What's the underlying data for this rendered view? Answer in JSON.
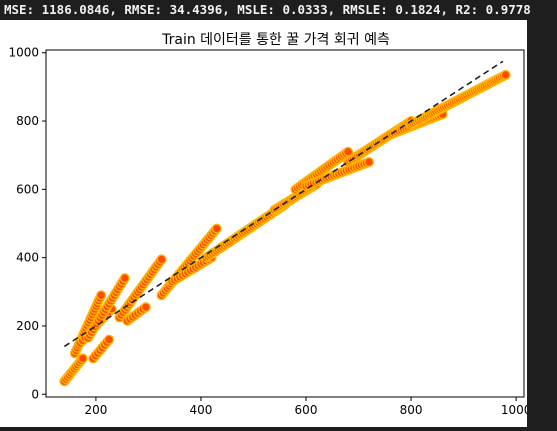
{
  "metrics_text": "MSE: 1186.0846, RMSE: 34.4396, MSLE: 0.0333, RMSLE: 0.1824, R2: 0.9778",
  "colors": {
    "marker_face": "#ff4a00",
    "marker_edge": "#ffb400",
    "diagonal": "#222222",
    "axes": "#000000",
    "figure_bg": "#ffffff",
    "page_bg": "#1e1e1e"
  },
  "chart_data": {
    "type": "scatter",
    "title": "Train 데이터를 통한 꿀 가격 회귀 예측",
    "xlabel": "",
    "ylabel": "",
    "xlim": [
      105,
      1015
    ],
    "ylim": [
      -8,
      1008
    ],
    "xticks": [
      200,
      400,
      600,
      800,
      1000
    ],
    "yticks": [
      0,
      200,
      400,
      600,
      800,
      1000
    ],
    "grid": false,
    "legend": "none",
    "diagonal_line": {
      "style": "dashed",
      "from": [
        140,
        140
      ],
      "to": [
        975,
        975
      ]
    },
    "segments": [
      {
        "from": [
          140,
          38
        ],
        "to": [
          175,
          105
        ],
        "n": 12
      },
      {
        "from": [
          160,
          120
        ],
        "to": [
          210,
          290
        ],
        "n": 22
      },
      {
        "from": [
          170,
          150
        ],
        "to": [
          230,
          250
        ],
        "n": 14
      },
      {
        "from": [
          185,
          165
        ],
        "to": [
          255,
          340
        ],
        "n": 22
      },
      {
        "from": [
          195,
          105
        ],
        "to": [
          225,
          160
        ],
        "n": 8
      },
      {
        "from": [
          245,
          225
        ],
        "to": [
          325,
          395
        ],
        "n": 24
      },
      {
        "from": [
          260,
          215
        ],
        "to": [
          295,
          255
        ],
        "n": 8
      },
      {
        "from": [
          325,
          290
        ],
        "to": [
          430,
          485
        ],
        "n": 30
      },
      {
        "from": [
          345,
          330
        ],
        "to": [
          420,
          400
        ],
        "n": 16
      },
      {
        "from": [
          410,
          400
        ],
        "to": [
          560,
          555
        ],
        "n": 40
      },
      {
        "from": [
          540,
          540
        ],
        "to": [
          620,
          615
        ],
        "n": 24
      },
      {
        "from": [
          580,
          600
        ],
        "to": [
          680,
          710
        ],
        "n": 26
      },
      {
        "from": [
          600,
          610
        ],
        "to": [
          720,
          680
        ],
        "n": 26
      },
      {
        "from": [
          680,
          680
        ],
        "to": [
          800,
          800
        ],
        "n": 34
      },
      {
        "from": [
          760,
          760
        ],
        "to": [
          860,
          820
        ],
        "n": 24
      },
      {
        "from": [
          800,
          790
        ],
        "to": [
          980,
          935
        ],
        "n": 50
      }
    ]
  }
}
